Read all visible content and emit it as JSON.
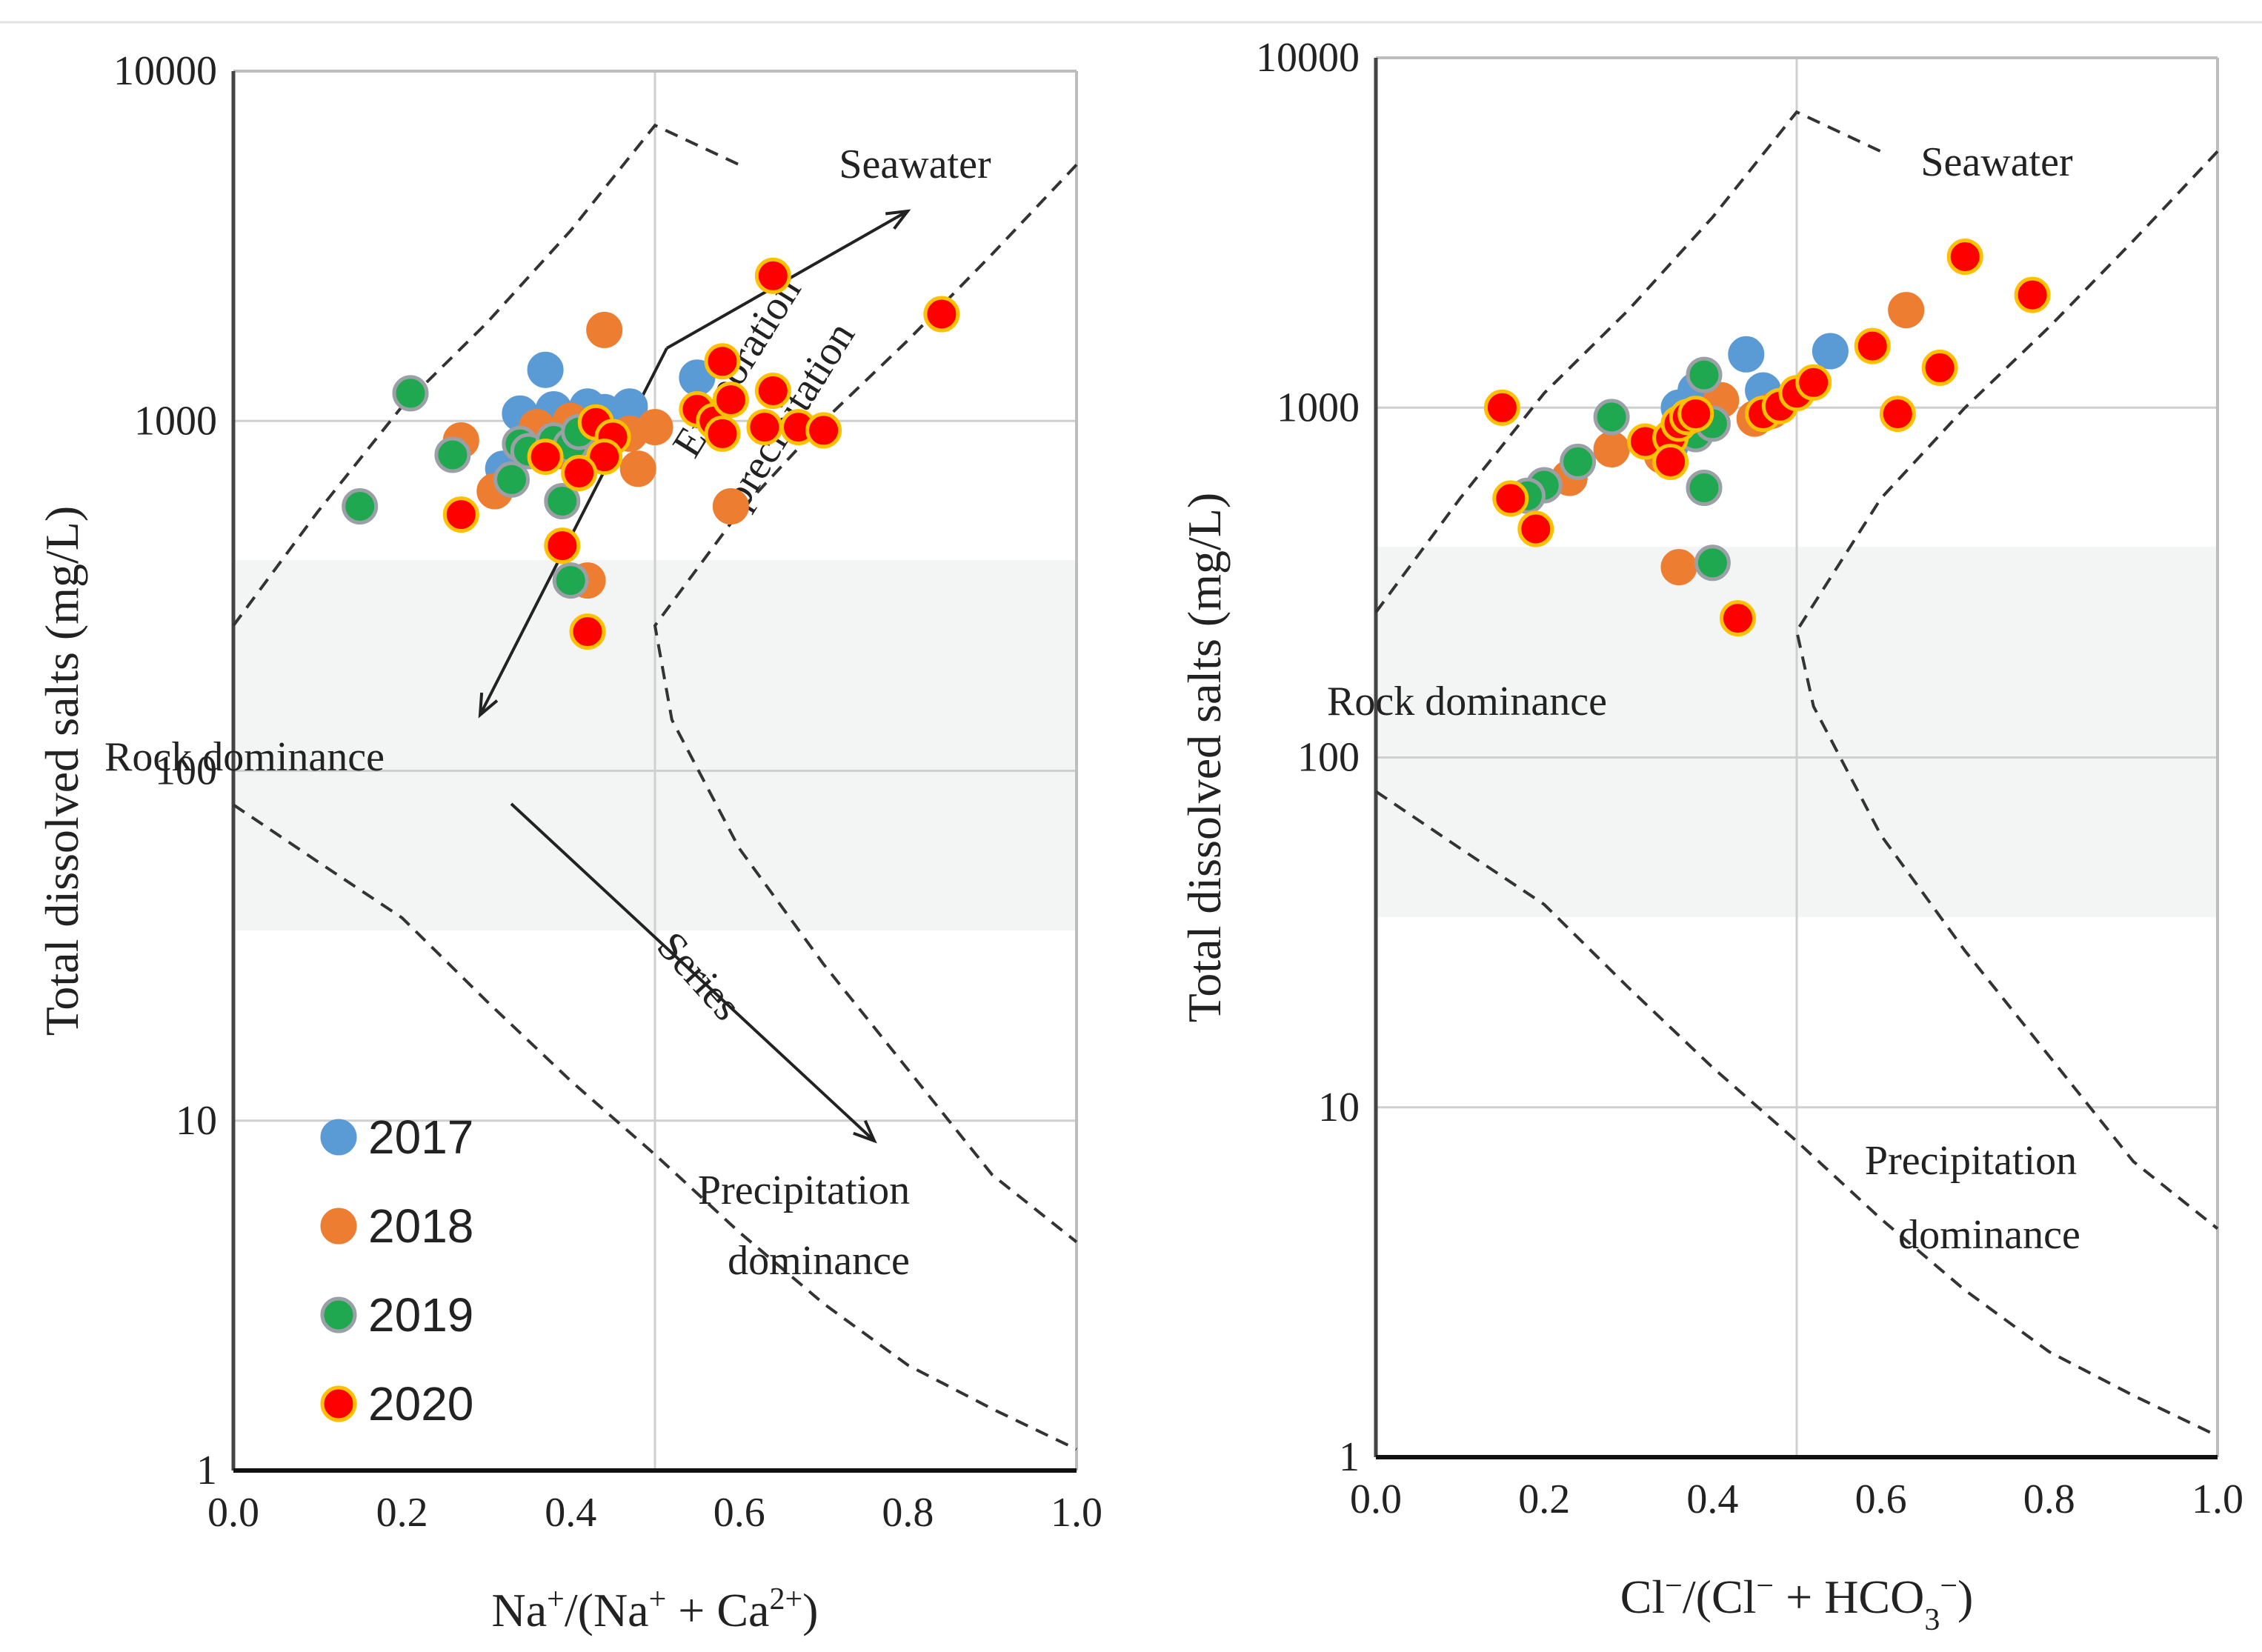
{
  "legend": [
    {
      "label": "2017",
      "fill": "#5b9bd5",
      "stroke": "#5b9bd5"
    },
    {
      "label": "2018",
      "fill": "#ed7d31",
      "stroke": "#ed7d31"
    },
    {
      "label": "2019",
      "fill": "#1fa84f",
      "stroke": "#9aa0a6"
    },
    {
      "label": "2020",
      "fill": "#ff0000",
      "stroke": "#ffc000"
    }
  ],
  "chart_data": [
    {
      "type": "scatter",
      "id": "left",
      "title": "",
      "xlabel_parts": [
        {
          "text": "Na",
          "sup": false
        },
        {
          "text": "+",
          "sup": true
        },
        {
          "text": "/(Na",
          "sup": false
        },
        {
          "text": "+",
          "sup": true
        },
        {
          "text": " + Ca",
          "sup": false
        },
        {
          "text": "2+",
          "sup": true
        },
        {
          "text": ")",
          "sup": false
        }
      ],
      "ylabel": "Total dissolved salts (mg/L)",
      "xlim": [
        0,
        1
      ],
      "ylim": [
        1,
        10000
      ],
      "yscale": "log",
      "xticks": [
        "0.0",
        "0.2",
        "0.4",
        "0.6",
        "0.8",
        "1.0"
      ],
      "yticks": [
        "1",
        "10",
        "100",
        "1000",
        "10000"
      ],
      "annotations": [
        {
          "text": "Seawater"
        },
        {
          "text": "Evaporation"
        },
        {
          "text": "precipitation"
        },
        {
          "text": "Rock dominance"
        },
        {
          "text": "Series"
        },
        {
          "text": "Precipitation"
        },
        {
          "text": "dominance"
        }
      ],
      "series": [
        {
          "name": "2017",
          "points": [
            [
              0.37,
              1400
            ],
            [
              0.34,
              1050
            ],
            [
              0.38,
              1080
            ],
            [
              0.42,
              1100
            ],
            [
              0.44,
              1060
            ],
            [
              0.47,
              1100
            ],
            [
              0.55,
              1330
            ],
            [
              0.32,
              730
            ],
            [
              0.36,
              900
            ],
            [
              0.41,
              920
            ],
            [
              0.39,
              1010
            ]
          ]
        },
        {
          "name": "2018",
          "points": [
            [
              0.44,
              1820
            ],
            [
              0.27,
              880
            ],
            [
              0.31,
              630
            ],
            [
              0.36,
              960
            ],
            [
              0.4,
              1000
            ],
            [
              0.43,
              950
            ],
            [
              0.47,
              920
            ],
            [
              0.5,
              960
            ],
            [
              0.48,
              730
            ],
            [
              0.59,
              570
            ],
            [
              0.42,
              350
            ],
            [
              0.39,
              820
            ]
          ]
        },
        {
          "name": "2019",
          "points": [
            [
              0.21,
              1200
            ],
            [
              0.26,
              800
            ],
            [
              0.15,
              570
            ],
            [
              0.33,
              680
            ],
            [
              0.34,
              860
            ],
            [
              0.35,
              820
            ],
            [
              0.38,
              880
            ],
            [
              0.4,
              850
            ],
            [
              0.41,
              930
            ],
            [
              0.39,
              590
            ],
            [
              0.4,
              350
            ]
          ]
        },
        {
          "name": "2020",
          "points": [
            [
              0.64,
              2600
            ],
            [
              0.84,
              2020
            ],
            [
              0.58,
              1480
            ],
            [
              0.55,
              1080
            ],
            [
              0.57,
              1000
            ],
            [
              0.59,
              1150
            ],
            [
              0.58,
              920
            ],
            [
              0.63,
              960
            ],
            [
              0.64,
              1220
            ],
            [
              0.67,
              960
            ],
            [
              0.7,
              940
            ],
            [
              0.43,
              990
            ],
            [
              0.45,
              900
            ],
            [
              0.44,
              790
            ],
            [
              0.41,
              710
            ],
            [
              0.37,
              790
            ],
            [
              0.27,
              540
            ],
            [
              0.39,
              440
            ],
            [
              0.42,
              250
            ]
          ]
        }
      ]
    },
    {
      "type": "scatter",
      "id": "right",
      "title": "",
      "xlabel_parts": [
        {
          "text": "Cl",
          "sup": false
        },
        {
          "text": "−",
          "sup": true
        },
        {
          "text": "/(Cl",
          "sup": false
        },
        {
          "text": "−",
          "sup": true
        },
        {
          "text": " + HCO",
          "sup": false
        },
        {
          "text": "3",
          "sub": true
        },
        {
          "text": "−",
          "sup": true
        },
        {
          "text": ")",
          "sup": false
        }
      ],
      "ylabel": "Total dissolved salts (mg/L)",
      "xlim": [
        0,
        1
      ],
      "ylim": [
        1,
        10000
      ],
      "yscale": "log",
      "xticks": [
        "0.0",
        "0.2",
        "0.4",
        "0.6",
        "0.8",
        "1.0"
      ],
      "yticks": [
        "1",
        "10",
        "100",
        "1000",
        "10000"
      ],
      "annotations": [
        {
          "text": "Seawater"
        },
        {
          "text": "Rock dominance"
        },
        {
          "text": "Precipitation"
        },
        {
          "text": "dominance"
        }
      ],
      "series": [
        {
          "name": "2017",
          "points": [
            [
              0.36,
              1000
            ],
            [
              0.38,
              1120
            ],
            [
              0.44,
              1420
            ],
            [
              0.46,
              1120
            ],
            [
              0.54,
              1450
            ],
            [
              0.35,
              780
            ],
            [
              0.37,
              880
            ]
          ]
        },
        {
          "name": "2018",
          "points": [
            [
              0.63,
              1900
            ],
            [
              0.28,
              760
            ],
            [
              0.23,
              630
            ],
            [
              0.36,
              350
            ],
            [
              0.41,
              1050
            ],
            [
              0.45,
              930
            ],
            [
              0.34,
              730
            ],
            [
              0.47,
              980
            ]
          ]
        },
        {
          "name": "2019",
          "points": [
            [
              0.39,
              1240
            ],
            [
              0.28,
              940
            ],
            [
              0.24,
              700
            ],
            [
              0.2,
              600
            ],
            [
              0.18,
              560
            ],
            [
              0.38,
              840
            ],
            [
              0.4,
              900
            ],
            [
              0.39,
              590
            ],
            [
              0.4,
              360
            ],
            [
              0.36,
              900
            ]
          ]
        },
        {
          "name": "2020",
          "points": [
            [
              0.15,
              1000
            ],
            [
              0.16,
              550
            ],
            [
              0.19,
              450
            ],
            [
              0.32,
              800
            ],
            [
              0.35,
              820
            ],
            [
              0.36,
              900
            ],
            [
              0.37,
              940
            ],
            [
              0.38,
              960
            ],
            [
              0.46,
              960
            ],
            [
              0.48,
              1010
            ],
            [
              0.5,
              1100
            ],
            [
              0.52,
              1180
            ],
            [
              0.59,
              1500
            ],
            [
              0.62,
              960
            ],
            [
              0.67,
              1300
            ],
            [
              0.7,
              2700
            ],
            [
              0.78,
              2100
            ],
            [
              0.43,
              250
            ],
            [
              0.35,
              700
            ]
          ]
        }
      ]
    }
  ]
}
